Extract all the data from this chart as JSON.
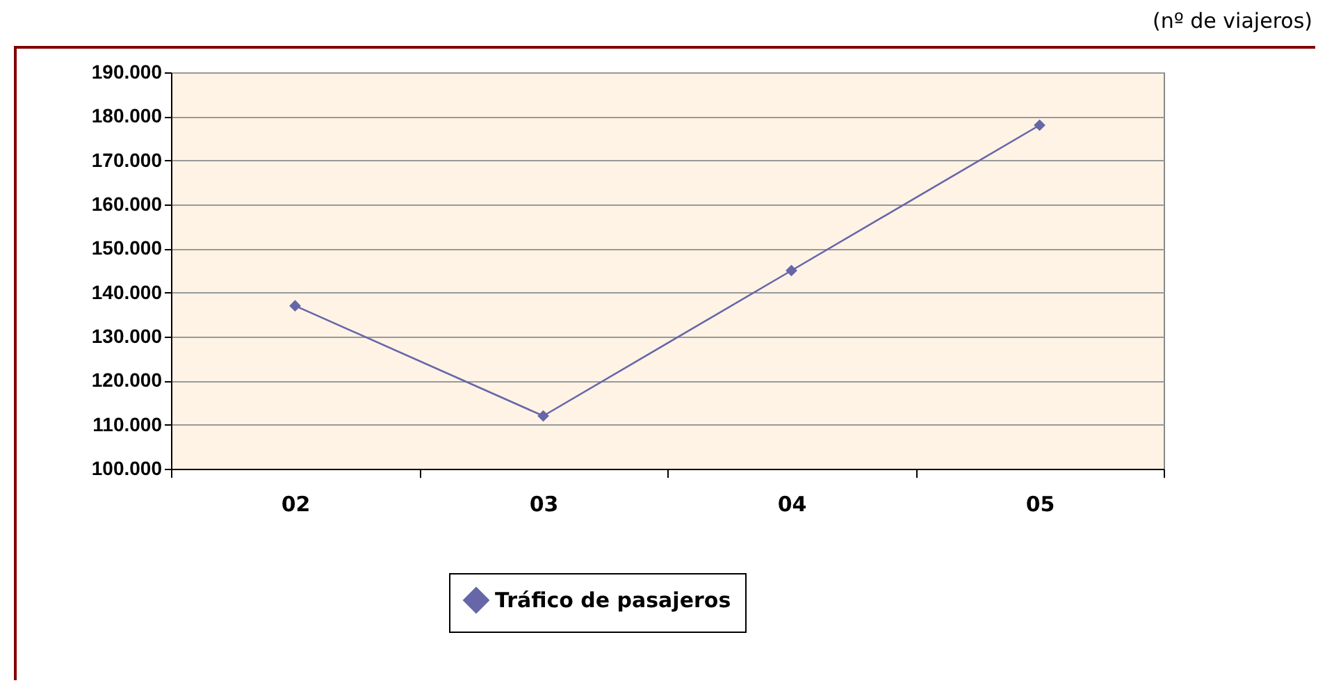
{
  "chart_data": {
    "type": "line",
    "annotations": [
      "(nº de viajeros)"
    ],
    "categories": [
      "02",
      "03",
      "04",
      "05"
    ],
    "series": [
      {
        "name": "Tráfico de pasajeros",
        "color": "#6666a8",
        "values": [
          137000,
          112000,
          145000,
          178000
        ]
      }
    ],
    "ylim": [
      100000,
      190000
    ],
    "yticks": [
      {
        "value": 100000,
        "label": "100.000"
      },
      {
        "value": 110000,
        "label": "110.000"
      },
      {
        "value": 120000,
        "label": "120.000"
      },
      {
        "value": 130000,
        "label": "130.000"
      },
      {
        "value": 140000,
        "label": "140.000"
      },
      {
        "value": 150000,
        "label": "150.000"
      },
      {
        "value": 160000,
        "label": "160.000"
      },
      {
        "value": 170000,
        "label": "170.000"
      },
      {
        "value": 180000,
        "label": "180.000"
      },
      {
        "value": 190000,
        "label": "190.000"
      }
    ],
    "grid": "y",
    "legend": "bottom",
    "marker": "diamond",
    "line_style": "solid"
  }
}
